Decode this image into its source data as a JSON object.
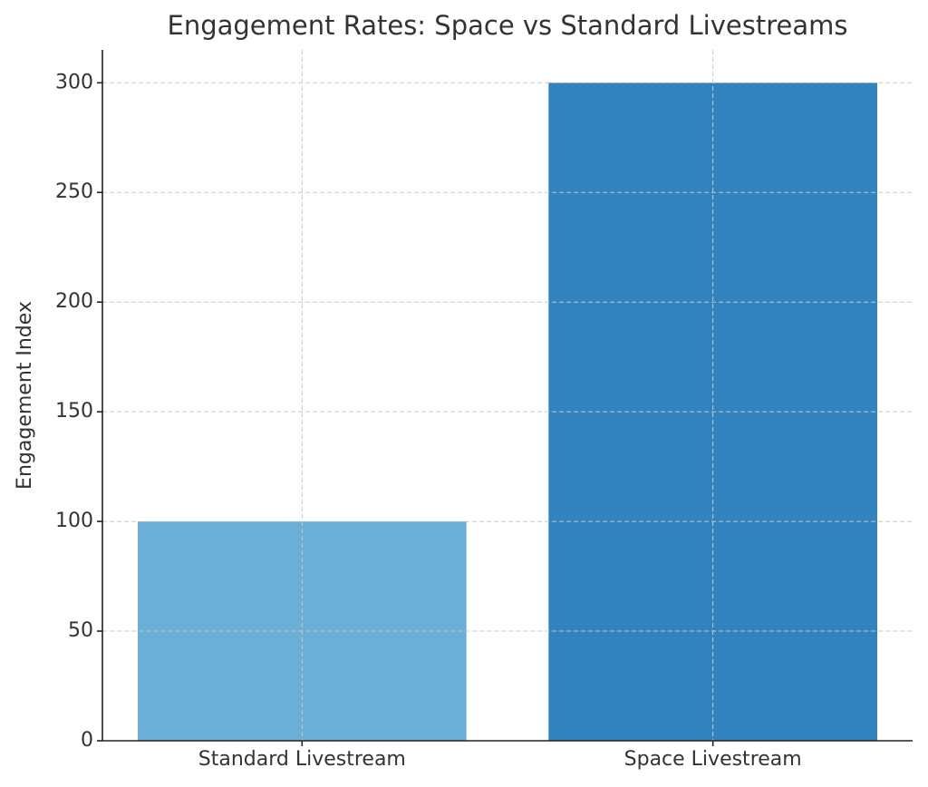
{
  "chart_data": {
    "type": "bar",
    "title": "Engagement Rates: Space vs Standard Livestreams",
    "y_label": "Engagement Index",
    "categories": [
      "Standard Livestream",
      "Space Livestream"
    ],
    "values": [
      100,
      300
    ],
    "colors": [
      "#6baed6",
      "#3182bd"
    ],
    "ylim": [
      0,
      315
    ],
    "yticks": [
      0,
      50,
      100,
      150,
      200,
      250,
      300
    ],
    "grid": true
  }
}
